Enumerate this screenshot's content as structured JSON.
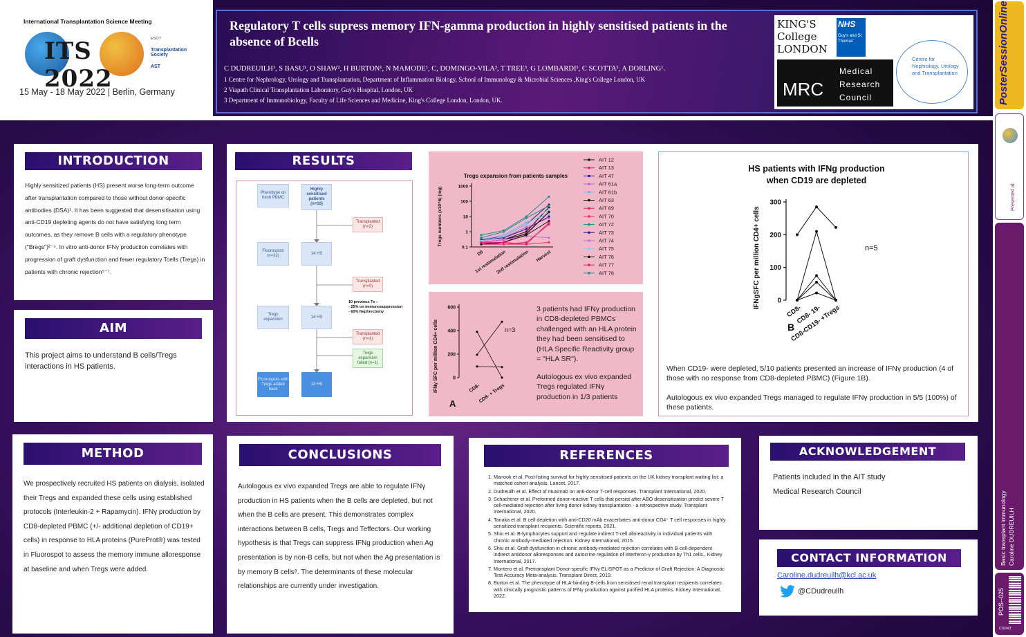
{
  "header": {
    "conference": "International Transplantation Science Meeting",
    "conf_logo": "ITS 2022",
    "conf_dates": "15 May - 18 May 2022 | Berlin, Germany",
    "partner_logos": [
      "ESOT",
      "Transplantation Society",
      "AST"
    ],
    "title": "Regulatory T cells supress memory IFN-gamma production in highly sensitised patients in the absence of Bcells",
    "authors": "C DUDREUILH¹, S BASU¹,  O SHAW², H BURTON¹, N MAMODE¹, C, DOMINGO-VILA³, T TREE³, G LOMBARDI¹,  C SCOTTA¹, A DORLING¹.",
    "affiliations": [
      "1 Centre for Nephrology, Urology and Transplantation, Department of Inflammation Biology, School of Immunology & Microbial Sciences ,King's College London, UK",
      "2 Viapath Clinical Transplantation Laboratory, Guy's Hospital, London, UK",
      "3 Department of Immunobiology, Faculty of Life Sciences and Medicine, King's College London, London, UK."
    ],
    "logos": {
      "kcl": "KING'S College LONDON",
      "nhs": "NHS",
      "nhs_sub": "Guy's and St Thomas'",
      "mrc": "MRC",
      "mrc_text": [
        "Medical",
        "Research",
        "Council"
      ],
      "centre": "Centre for Nephrology, Urology and Transplantation"
    }
  },
  "introduction": {
    "heading": "INTRODUCTION",
    "text": "Highly sensitized patients (HS) present worse long-term outcome after transplantation compared to those without donor-specific antibodies (DSA)¹. It has been suggested that desensitisation using anti-CD19 depleting agents do not have satisfying long term outcomes, as they remove B cells with a regulatory phenotype (\"Bregs\")²⁻⁴. In vitro anti-donor IFNγ production correlates with progression of graft dysfunction and fewer regulatory Tcells (Tregs) in patients with chronic rejection⁵⁻⁷."
  },
  "aim": {
    "heading": "AIM",
    "text": "This project aims to understand B cells/Tregs interactions in HS patients."
  },
  "results": {
    "heading": "RESULTS",
    "flow": {
      "phenotype": "Phenotype on fresh PBMC",
      "hs16": "Highly sensitised patients (n=16)",
      "transplanted2": "Transplanted (n=2)",
      "fluorospots22": "Fluorospots (n=22)",
      "hs14a": "14 HS",
      "transplanted0": "Transplanted (n=0)",
      "tregs_exp": "Tregs expansion",
      "hs14b": "14 HS",
      "previous_tx": "10 previous Tx :\n- 25% on immunosuppression\n- 60% Nephrectomy",
      "transplanted1": "Transplanted (n=1)",
      "exp_failed": "Tregs expansion failed (n=1)",
      "fluorospots_back": "Fluorospots with Tregs added back",
      "hs12": "12 HS"
    },
    "text_a": "3 patients had IFNγ production in CD8-depleted PBMCs challenged with an HLA protein they had been sensitised to (HLA Specific Reactivity group = \"HLA SR\").",
    "text_a2": "Autologous ex vivo expanded Tregs regulated IFNγ production in 1/3 patients",
    "text_b1": "When CD19- were depleted, 5/10 patients presented an increase of IFNγ production (4 of those with no response from CD8-depleted PBMC) (Figure 1B).",
    "text_b2": "Autologous ex vivo expanded Tregs managed to regulate IFNγ production in 5/5 (100%) of these patients."
  },
  "chart_data": [
    {
      "type": "line",
      "title": "Tregs expansion from patients samples",
      "ylabel": "Tregs numbers (x10^6) (log)",
      "yscale": "log",
      "ylim": [
        0.1,
        1000
      ],
      "yticks": [
        "0.1",
        "1",
        "10",
        "100",
        "1000"
      ],
      "categories": [
        "D0",
        "1st restimulation",
        "2nd restimulation",
        "Harvest"
      ],
      "series": [
        {
          "name": "AIT 12",
          "color": "#111111",
          "values": [
            0.2,
            0.3,
            1,
            40
          ]
        },
        {
          "name": "AIT 13",
          "color": "#e0206a",
          "values": [
            0.15,
            0.2,
            0.8,
            20
          ]
        },
        {
          "name": "AIT 47",
          "color": "#3a1a8a",
          "values": [
            0.3,
            0.5,
            3,
            60
          ]
        },
        {
          "name": "AIT 61a",
          "color": "#b070d0",
          "values": [
            0.25,
            0.4,
            2,
            8
          ]
        },
        {
          "name": "AIT 61b",
          "color": "#7ab0f0",
          "values": [
            0.3,
            0.6,
            4,
            15
          ]
        },
        {
          "name": "AIT 63",
          "color": "#111111",
          "values": [
            0.2,
            0.3,
            0.7,
            20
          ]
        },
        {
          "name": "AIT 69",
          "color": "#e0206a",
          "values": [
            0.15,
            0.15,
            0.2,
            3
          ]
        },
        {
          "name": "AIT 70",
          "color": "#f03060",
          "values": [
            0.2,
            0.15,
            0.15,
            0.2
          ]
        },
        {
          "name": "AIT 72",
          "color": "#20908a",
          "values": [
            0.4,
            1,
            8,
            50
          ]
        },
        {
          "name": "AIT 73",
          "color": "#3a1a8a",
          "values": [
            0.3,
            0.4,
            1.5,
            10
          ]
        },
        {
          "name": "AIT 74",
          "color": "#c070e0",
          "values": [
            0.2,
            0.3,
            0.5,
            0.4
          ]
        },
        {
          "name": "AIT 75",
          "color": "#90c8f0",
          "values": [
            0.25,
            0.5,
            3,
            30
          ]
        },
        {
          "name": "AIT 76",
          "color": "#111111",
          "values": [
            0.15,
            0.2,
            0.6,
            5
          ]
        },
        {
          "name": "AIT 77",
          "color": "#e0206a",
          "values": [
            0.2,
            0.2,
            0.15,
            4
          ]
        },
        {
          "name": "AIT 78",
          "color": "#2a8a90",
          "values": [
            0.6,
            1.2,
            10,
            200
          ]
        }
      ]
    },
    {
      "type": "line",
      "panel_label": "A",
      "ylabel": "IFNγ SFC per million CD4+ cells",
      "ylim": [
        0,
        600
      ],
      "yticks": [
        "0",
        "200",
        "400",
        "600"
      ],
      "categories": [
        "CD8-",
        "CD8- + Tregs"
      ],
      "annotation": "n=3",
      "series": [
        {
          "values": [
            390,
            0
          ]
        },
        {
          "values": [
            195,
            475
          ]
        },
        {
          "values": [
            95,
            90
          ]
        }
      ]
    },
    {
      "type": "line",
      "panel_label": "B",
      "title_line1": "HS patients with IFNg production",
      "title_line2": "when CD19 are depleted",
      "ylabel": "IFNgSFC per million CD4+ cells",
      "ylim": [
        0,
        300
      ],
      "yticks": [
        "0",
        "100",
        "200",
        "300"
      ],
      "categories": [
        "CD8-",
        "CD8- 19-",
        "CD8-CD19- +Tregs"
      ],
      "annotation": "n=5",
      "series": [
        {
          "values": [
            200,
            285,
            222
          ]
        },
        {
          "values": [
            0,
            210,
            0
          ]
        },
        {
          "values": [
            0,
            75,
            0
          ]
        },
        {
          "values": [
            0,
            55,
            0
          ]
        },
        {
          "values": [
            0,
            22,
            0
          ]
        }
      ]
    }
  ],
  "method": {
    "heading": "METHOD",
    "text": "We prospectively recruited HS patients on dialysis, isolated their Tregs and expanded these cells using established protocols (Interleukin-2 + Rapamycin). IFNγ production by CD8-depleted PBMC (+/- additional depletion of CD19+ cells) in response to HLA proteins (PureProt®) was tested in Fluorospot to assess the memory immune alloresponse at baseline and when Tregs were added."
  },
  "conclusions": {
    "heading": "CONCLUSIONS",
    "text": "Autologous ex vivo expanded Tregs are able to regulate IFNγ production in HS patients when the B cells are depleted, but not when the B cells are present. This demonstrates complex interactions between B cells, Tregs and Teffectors. Our working hypothesis is that Tregs can suppress IFNg production when Ag presentation is by non-B cells, but not when the Ag presentation is by memory B cells⁸. The determinants of these molecular relationships are currently under investigation."
  },
  "references": {
    "heading": "REFERENCES",
    "items": [
      "Manook et al. Post-listing survival for highly sensitised patients on the UK kidney transplant waiting list: a matched cohort analysis. Lancet, 2017.",
      "Dudreuilh et al. Effect of rituximab on anti-donor T-cell responses. Transplant International, 2020.",
      "Schachtner et al. Preformed donor-reactive T cells that persist after ABO desensitization predict severe T cell-mediated rejection after living donor kidney transplantation - a retrospective study. Transplant International, 2020.",
      "Tanaka et al. B cell depletion with anti-CD20 mAb exacerbates anti-donor CD4⁺ T cell responses in highly sensitized transplant recipients. Scientific reports, 2021.",
      "Shiu et al.  B-lymphocytes support and regulate indirect T-cell alloreactivity in individual patients with chronic antibody-mediated rejection.  Kidney International, 2015.",
      "Shiu et al.  Graft dysfunction in chronic antibody-mediated rejection correlates with B-cell-dependent indirect antidonor alloresponses and autocrine regulation of interferon-γ production by Th1 cells., Kidney International, 2017.",
      "Montero et al. Pretransplant Donor-specific IFNγ ELISPOT as a Predictor of Graft Rejection: A Diagnostic Test Accuracy Meta-analysis. Transplant Direct, 2019.",
      "Burton et al. The phenotype of HLA-binding B-cells from sensitised renal transplant recipients correlates with clinically prognostic patterns of IFNγ production against purified HLA proteins. Kidney International, 2022."
    ]
  },
  "acknowledgement": {
    "heading": "ACKNOWLEDGEMENT",
    "lines": [
      "Patients included in the AIT study",
      "Medical Research Council"
    ]
  },
  "contact": {
    "heading": "CONTACT INFORMATION",
    "email": "Caroline.dudreuilh@kcl.ac.uk",
    "twitter": "@CDudreuilh"
  },
  "sidebar": {
    "brand": "PosterSessionOnline",
    "presented_at": "Presented at:",
    "category": "Basic transplant immunology",
    "author": "Caroline DUDREUILH",
    "poster_id": "POS--025",
    "code": "CDDR3"
  },
  "colors": {
    "accent_purple": "#3a1868",
    "chart_bg": "#f0b8c8",
    "pink_border": "#d890b0"
  }
}
